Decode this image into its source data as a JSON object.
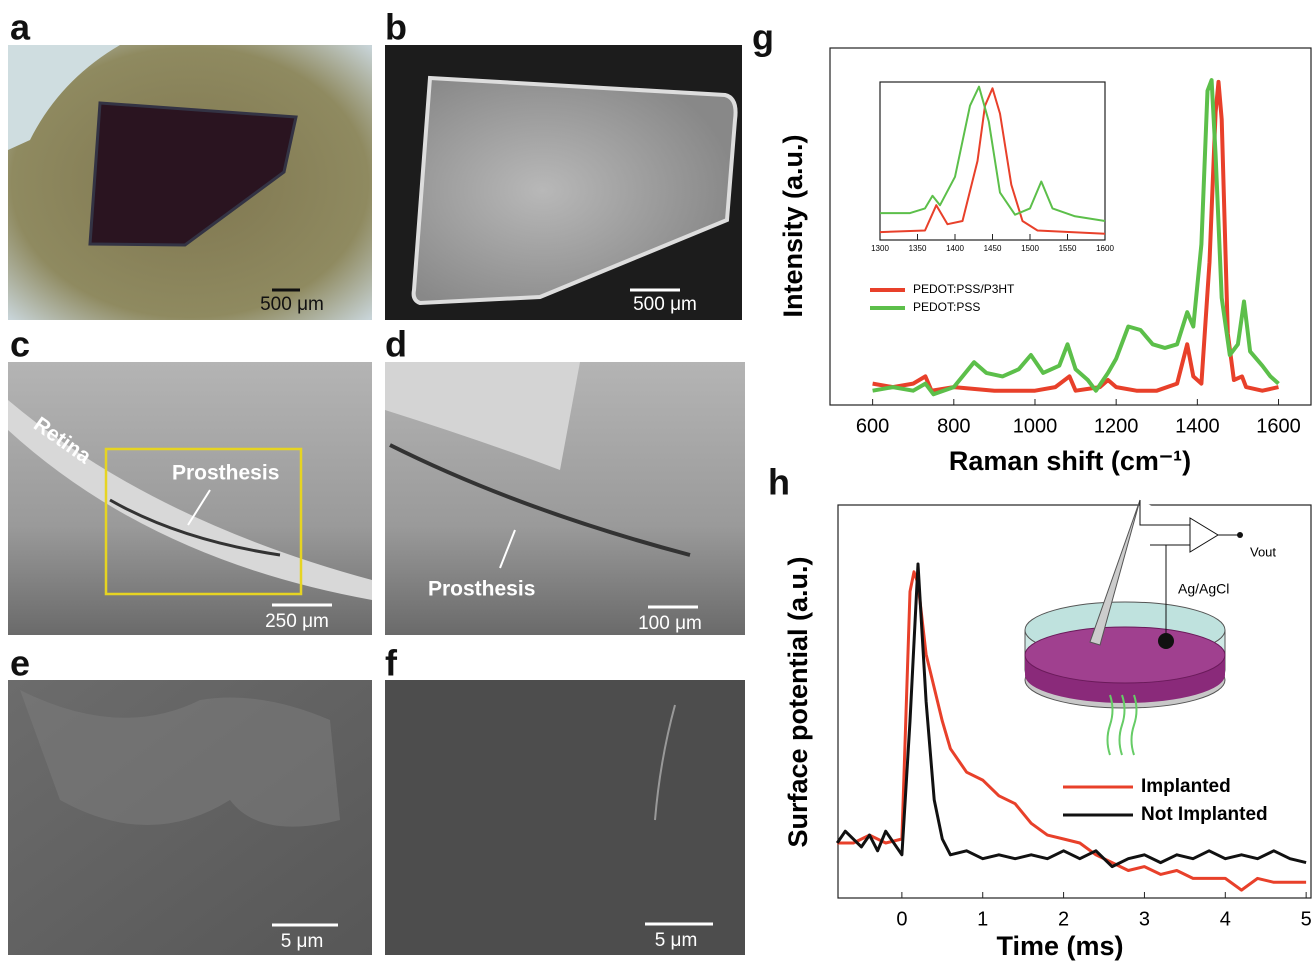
{
  "panels": [
    {
      "label": "a",
      "scale_bar": "500 μm"
    },
    {
      "label": "b",
      "scale_bar": "500 μm"
    },
    {
      "label": "c",
      "scale_bar": "250 μm",
      "annotations": [
        "Retina",
        "Prosthesis"
      ]
    },
    {
      "label": "d",
      "scale_bar": "100 μm",
      "annotations": [
        "Prosthesis"
      ]
    },
    {
      "label": "e",
      "scale_bar": "5 μm"
    },
    {
      "label": "f",
      "scale_bar": "5 μm"
    }
  ],
  "diagram": {
    "labels": [
      "Vout",
      "Ag/AgCl"
    ]
  },
  "chart_data": [
    {
      "type": "line",
      "panel_label": "g",
      "x_label": "Raman shift (cm⁻¹)",
      "y_label": "Intensity (a.u.)",
      "xlim": [
        495,
        1680
      ],
      "ylim": [
        0,
        1
      ],
      "xticks": [
        600,
        800,
        1000,
        1200,
        1400,
        1600
      ],
      "series": [
        {
          "name": "PEDOT:PSS/P3HT",
          "color": "#e8402a",
          "x": [
            600,
            650,
            700,
            730,
            745,
            800,
            900,
            1000,
            1050,
            1085,
            1100,
            1160,
            1180,
            1200,
            1250,
            1300,
            1350,
            1375,
            1390,
            1410,
            1430,
            1445,
            1452,
            1460,
            1475,
            1490,
            1510,
            1520,
            1560,
            1600
          ],
          "values": [
            0.06,
            0.05,
            0.06,
            0.08,
            0.04,
            0.05,
            0.04,
            0.04,
            0.05,
            0.08,
            0.04,
            0.05,
            0.07,
            0.05,
            0.04,
            0.04,
            0.06,
            0.17,
            0.08,
            0.06,
            0.4,
            0.82,
            0.905,
            0.8,
            0.2,
            0.07,
            0.08,
            0.05,
            0.04,
            0.05
          ]
        },
        {
          "name": "PEDOT:PSS",
          "color": "#5cbf4a",
          "x": [
            600,
            650,
            700,
            730,
            750,
            800,
            850,
            880,
            920,
            960,
            990,
            1020,
            1060,
            1080,
            1100,
            1130,
            1150,
            1180,
            1200,
            1230,
            1260,
            1290,
            1320,
            1350,
            1375,
            1390,
            1410,
            1425,
            1435,
            1445,
            1460,
            1480,
            1500,
            1515,
            1530,
            1560,
            1580,
            1600
          ],
          "values": [
            0.04,
            0.05,
            0.04,
            0.06,
            0.03,
            0.05,
            0.12,
            0.09,
            0.08,
            0.1,
            0.14,
            0.09,
            0.11,
            0.17,
            0.1,
            0.07,
            0.04,
            0.09,
            0.13,
            0.22,
            0.21,
            0.17,
            0.16,
            0.17,
            0.26,
            0.22,
            0.45,
            0.88,
            0.91,
            0.7,
            0.3,
            0.14,
            0.17,
            0.29,
            0.15,
            0.11,
            0.08,
            0.06
          ]
        }
      ]
    },
    {
      "type": "line",
      "xlim": [
        1300,
        1600
      ],
      "ylim": [
        0,
        1
      ],
      "xticks": [
        1300,
        1350,
        1400,
        1450,
        1500,
        1550,
        1600
      ],
      "series": [
        {
          "color": "#e8402a",
          "x": [
            1300,
            1360,
            1375,
            1390,
            1410,
            1430,
            1440,
            1450,
            1460,
            1475,
            1490,
            1510,
            1600
          ],
          "values": [
            0.05,
            0.06,
            0.22,
            0.1,
            0.12,
            0.5,
            0.85,
            0.96,
            0.8,
            0.35,
            0.12,
            0.06,
            0.04
          ]
        },
        {
          "color": "#5cbf4a",
          "x": [
            1300,
            1340,
            1360,
            1370,
            1380,
            1400,
            1420,
            1432,
            1445,
            1460,
            1480,
            1500,
            1515,
            1530,
            1560,
            1600
          ],
          "values": [
            0.17,
            0.17,
            0.2,
            0.28,
            0.22,
            0.4,
            0.85,
            0.97,
            0.75,
            0.3,
            0.16,
            0.2,
            0.37,
            0.2,
            0.15,
            0.12
          ]
        }
      ]
    },
    {
      "type": "line",
      "panel_label": "h",
      "x_label": "Time (ms)",
      "y_label": "Surface potential (a.u.)",
      "xlim": [
        -0.79,
        5.06
      ],
      "ylim": [
        0,
        1
      ],
      "xticks": [
        0,
        1,
        2,
        3,
        4,
        5
      ],
      "series": [
        {
          "name": "Implanted",
          "color": "#e8402a",
          "x": [
            -0.8,
            -0.6,
            -0.4,
            -0.2,
            0,
            0.1,
            0.15,
            0.2,
            0.3,
            0.5,
            0.6,
            0.8,
            1.0,
            1.2,
            1.4,
            1.6,
            1.8,
            2.0,
            2.2,
            2.4,
            2.6,
            2.8,
            3.0,
            3.2,
            3.4,
            3.6,
            3.8,
            4.0,
            4.2,
            4.4,
            4.6,
            4.8,
            5.0
          ],
          "values": [
            0.14,
            0.14,
            0.16,
            0.14,
            0.15,
            0.78,
            0.83,
            0.8,
            0.62,
            0.45,
            0.38,
            0.32,
            0.3,
            0.26,
            0.24,
            0.19,
            0.16,
            0.15,
            0.14,
            0.11,
            0.09,
            0.07,
            0.08,
            0.06,
            0.07,
            0.05,
            0.05,
            0.05,
            0.02,
            0.05,
            0.04,
            0.04,
            0.04
          ]
        },
        {
          "name": "Not Implanted",
          "color": "#111111",
          "x": [
            -0.8,
            -0.7,
            -0.5,
            -0.4,
            -0.3,
            -0.2,
            0,
            0.1,
            0.2,
            0.3,
            0.4,
            0.5,
            0.6,
            0.8,
            1.0,
            1.2,
            1.4,
            1.6,
            1.8,
            2.0,
            2.2,
            2.4,
            2.6,
            2.8,
            3.0,
            3.2,
            3.4,
            3.6,
            3.8,
            4.0,
            4.2,
            4.4,
            4.6,
            4.8,
            5.0
          ],
          "values": [
            0.14,
            0.17,
            0.13,
            0.16,
            0.12,
            0.17,
            0.11,
            0.45,
            0.85,
            0.5,
            0.25,
            0.15,
            0.11,
            0.12,
            0.1,
            0.11,
            0.1,
            0.11,
            0.1,
            0.12,
            0.1,
            0.12,
            0.08,
            0.1,
            0.11,
            0.09,
            0.11,
            0.1,
            0.12,
            0.1,
            0.11,
            0.1,
            0.12,
            0.1,
            0.09
          ]
        }
      ]
    }
  ]
}
